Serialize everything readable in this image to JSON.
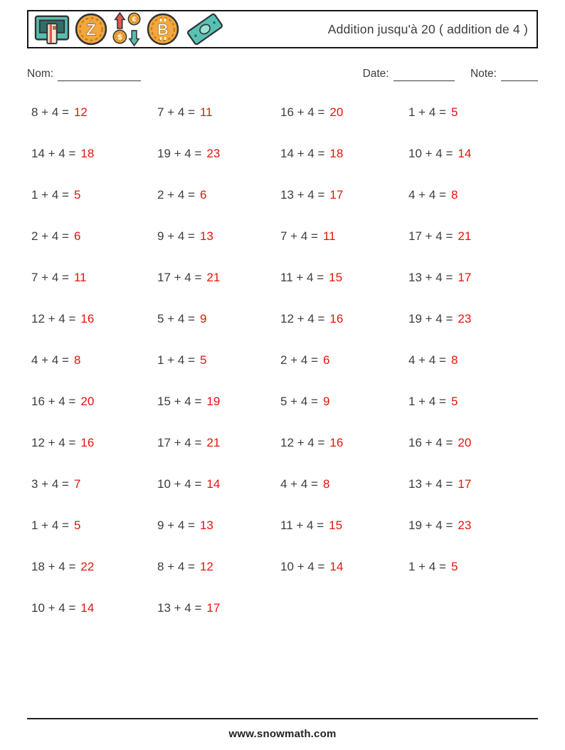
{
  "header": {
    "title": "Addition jusqu'à 20 ( addition de 4 )",
    "icons": [
      "cash-machine-icon",
      "zcash-coin-icon",
      "currency-exchange-icon",
      "bitcoin-coin-icon",
      "banknote-icon"
    ]
  },
  "fields": {
    "name_label": "Nom:",
    "date_label": "Date:",
    "note_label": "Note:"
  },
  "problems": [
    {
      "q": "8 + 4 =",
      "a": "12"
    },
    {
      "q": "7 + 4 =",
      "a": "11"
    },
    {
      "q": "16 + 4 =",
      "a": "20"
    },
    {
      "q": "1 + 4 =",
      "a": "5"
    },
    {
      "q": "14 + 4 =",
      "a": "18"
    },
    {
      "q": "19 + 4 =",
      "a": "23"
    },
    {
      "q": "14 + 4 =",
      "a": "18"
    },
    {
      "q": "10 + 4 =",
      "a": "14"
    },
    {
      "q": "1 + 4 =",
      "a": "5"
    },
    {
      "q": "2 + 4 =",
      "a": "6"
    },
    {
      "q": "13 + 4 =",
      "a": "17"
    },
    {
      "q": "4 + 4 =",
      "a": "8"
    },
    {
      "q": "2 + 4 =",
      "a": "6"
    },
    {
      "q": "9 + 4 =",
      "a": "13"
    },
    {
      "q": "7 + 4 =",
      "a": "11"
    },
    {
      "q": "17 + 4 =",
      "a": "21"
    },
    {
      "q": "7 + 4 =",
      "a": "11"
    },
    {
      "q": "17 + 4 =",
      "a": "21"
    },
    {
      "q": "11 + 4 =",
      "a": "15"
    },
    {
      "q": "13 + 4 =",
      "a": "17"
    },
    {
      "q": "12 + 4 =",
      "a": "16"
    },
    {
      "q": "5 + 4 =",
      "a": "9"
    },
    {
      "q": "12 + 4 =",
      "a": "16"
    },
    {
      "q": "19 + 4 =",
      "a": "23"
    },
    {
      "q": "4 + 4 =",
      "a": "8"
    },
    {
      "q": "1 + 4 =",
      "a": "5"
    },
    {
      "q": "2 + 4 =",
      "a": "6"
    },
    {
      "q": "4 + 4 =",
      "a": "8"
    },
    {
      "q": "16 + 4 =",
      "a": "20"
    },
    {
      "q": "15 + 4 =",
      "a": "19"
    },
    {
      "q": "5 + 4 =",
      "a": "9"
    },
    {
      "q": "1 + 4 =",
      "a": "5"
    },
    {
      "q": "12 + 4 =",
      "a": "16"
    },
    {
      "q": "17 + 4 =",
      "a": "21"
    },
    {
      "q": "12 + 4 =",
      "a": "16"
    },
    {
      "q": "16 + 4 =",
      "a": "20"
    },
    {
      "q": "3 + 4 =",
      "a": "7"
    },
    {
      "q": "10 + 4 =",
      "a": "14"
    },
    {
      "q": "4 + 4 =",
      "a": "8"
    },
    {
      "q": "13 + 4 =",
      "a": "17"
    },
    {
      "q": "1 + 4 =",
      "a": "5"
    },
    {
      "q": "9 + 4 =",
      "a": "13"
    },
    {
      "q": "11 + 4 =",
      "a": "15"
    },
    {
      "q": "19 + 4 =",
      "a": "23"
    },
    {
      "q": "18 + 4 =",
      "a": "22"
    },
    {
      "q": "8 + 4 =",
      "a": "12"
    },
    {
      "q": "10 + 4 =",
      "a": "14"
    },
    {
      "q": "1 + 4 =",
      "a": "5"
    },
    {
      "q": "10 + 4 =",
      "a": "14"
    },
    {
      "q": "13 + 4 =",
      "a": "17"
    }
  ],
  "footer": {
    "website": "www.snowmath.com"
  },
  "colors": {
    "answer_red": "#e8120a",
    "problem_text": "#3d3d3d",
    "coin_orange": "#f3a73c",
    "teal": "#54bfb1",
    "arrow_red": "#e2574c"
  }
}
